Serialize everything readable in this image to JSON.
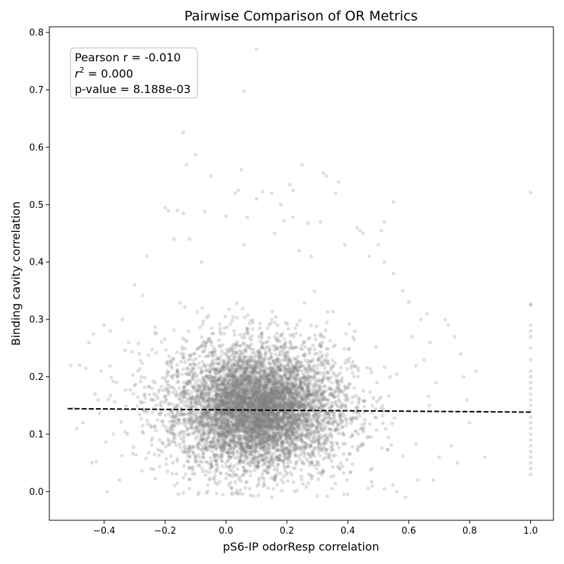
{
  "chart_data": {
    "type": "scatter",
    "title": "Pairwise Comparison of OR Metrics",
    "xlabel": "pS6-IP odorResp correlation",
    "ylabel": "Binding cavity correlation",
    "xlim": [
      -0.58,
      1.075
    ],
    "ylim": [
      -0.05,
      0.81
    ],
    "xticks": [
      -0.4,
      -0.2,
      0.0,
      0.2,
      0.4,
      0.6,
      0.8,
      1.0
    ],
    "xtick_labels": [
      "−0.4",
      "−0.2",
      "0.0",
      "0.2",
      "0.4",
      "0.6",
      "0.8",
      "1.0"
    ],
    "yticks": [
      0.0,
      0.1,
      0.2,
      0.3,
      0.4,
      0.5,
      0.6,
      0.7,
      0.8
    ],
    "ytick_labels": [
      "0.0",
      "0.1",
      "0.2",
      "0.3",
      "0.4",
      "0.5",
      "0.6",
      "0.7",
      "0.8"
    ],
    "grid": false,
    "point_color": "#808080",
    "point_alpha": 0.25,
    "annotation": {
      "pearson": "Pearson r = -0.010",
      "r2_prefix": "r",
      "r2_exp": "2",
      "r2_value": " = 0.000",
      "pvalue": "p-value = 8.188e-03"
    },
    "fit_line": {
      "style": "dashed",
      "color": "#000000",
      "x": [
        -0.52,
        1.0
      ],
      "y": [
        0.1445,
        0.1385
      ]
    },
    "series": [
      {
        "points": [
          [
            0.1,
            0.771
          ],
          [
            0.06,
            0.698
          ],
          [
            -0.14,
            0.626
          ],
          [
            -0.1,
            0.587
          ],
          [
            -0.13,
            0.57
          ],
          [
            0.05,
            0.561
          ],
          [
            0.25,
            0.57
          ],
          [
            0.32,
            0.555
          ],
          [
            0.33,
            0.55
          ],
          [
            0.21,
            0.535
          ],
          [
            0.22,
            0.525
          ],
          [
            0.12,
            0.523
          ],
          [
            0.15,
            0.52
          ],
          [
            0.04,
            0.525
          ],
          [
            0.03,
            0.52
          ],
          [
            -0.05,
            0.55
          ],
          [
            0.37,
            0.54
          ],
          [
            0.36,
            0.52
          ],
          [
            0.55,
            0.505
          ],
          [
            0.1,
            0.51
          ],
          [
            0.18,
            0.5
          ],
          [
            -0.2,
            0.495
          ],
          [
            -0.19,
            0.49
          ],
          [
            -0.16,
            0.49
          ],
          [
            -0.14,
            0.485
          ],
          [
            -0.07,
            0.488
          ],
          [
            0.0,
            0.48
          ],
          [
            0.07,
            0.478
          ],
          [
            0.22,
            0.478
          ],
          [
            0.19,
            0.472
          ],
          [
            0.31,
            0.47
          ],
          [
            0.27,
            0.468
          ],
          [
            0.43,
            0.46
          ],
          [
            0.44,
            0.455
          ],
          [
            0.45,
            0.45
          ],
          [
            0.52,
            0.47
          ],
          [
            0.51,
            0.455
          ],
          [
            1.0,
            0.521
          ],
          [
            -0.3,
            0.36
          ],
          [
            -0.26,
            0.41
          ],
          [
            -0.17,
            0.44
          ],
          [
            -0.12,
            0.44
          ],
          [
            -0.08,
            0.4
          ],
          [
            0.06,
            0.43
          ],
          [
            0.16,
            0.45
          ],
          [
            0.24,
            0.42
          ],
          [
            0.28,
            0.41
          ],
          [
            0.39,
            0.43
          ],
          [
            0.47,
            0.41
          ],
          [
            0.5,
            0.43
          ],
          [
            0.52,
            0.4
          ],
          [
            0.55,
            0.38
          ],
          [
            0.58,
            0.35
          ],
          [
            0.6,
            0.33
          ],
          [
            0.64,
            0.3
          ],
          [
            0.66,
            0.31
          ],
          [
            0.67,
            0.26
          ],
          [
            0.72,
            0.3
          ],
          [
            0.73,
            0.29
          ],
          [
            0.75,
            0.27
          ],
          [
            0.77,
            0.24
          ],
          [
            0.78,
            0.2
          ],
          [
            0.79,
            0.16
          ],
          [
            0.8,
            0.12
          ],
          [
            0.83,
            0.14
          ],
          [
            0.85,
            0.06
          ],
          [
            0.82,
            0.21
          ],
          [
            0.76,
            0.05
          ],
          [
            0.74,
            0.08
          ],
          [
            0.7,
            0.06
          ],
          [
            0.68,
            0.02
          ],
          [
            0.63,
            0.02
          ],
          [
            0.59,
            -0.01
          ],
          [
            0.69,
            0.19
          ],
          [
            0.65,
            0.23
          ],
          [
            0.61,
            0.27
          ],
          [
            -0.51,
            0.22
          ],
          [
            -0.48,
            0.22
          ],
          [
            -0.46,
            0.215
          ],
          [
            -0.45,
            0.26
          ],
          [
            -0.43,
            0.17
          ],
          [
            -0.42,
            0.16
          ],
          [
            -0.41,
            0.21
          ],
          [
            -0.4,
            0.29
          ],
          [
            -0.38,
            0.28
          ],
          [
            -0.36,
            0.19
          ],
          [
            -0.47,
            0.12
          ],
          [
            -0.44,
            0.05
          ],
          [
            -0.39,
            0.0
          ],
          [
            -0.37,
            0.1
          ],
          [
            -0.35,
            0.02
          ],
          [
            -0.5,
            0.145
          ],
          [
            -0.49,
            0.11
          ],
          [
            -0.34,
            0.3
          ],
          [
            -0.32,
            0.26
          ],
          [
            -0.06,
            0.0
          ],
          [
            0.02,
            -0.005
          ],
          [
            0.15,
            -0.01
          ],
          [
            0.3,
            -0.008
          ],
          [
            0.4,
            -0.005
          ],
          [
            -0.12,
            0.005
          ],
          [
            0.48,
            0.01
          ],
          [
            0.52,
            0.005
          ],
          [
            0.56,
            0.0
          ],
          [
            1.0,
            0.327
          ],
          [
            1.0,
            0.325
          ],
          [
            1.0,
            0.29
          ],
          [
            1.0,
            0.28
          ],
          [
            1.0,
            0.27
          ],
          [
            1.0,
            0.25
          ],
          [
            1.0,
            0.23
          ],
          [
            1.0,
            0.21
          ],
          [
            1.0,
            0.2
          ],
          [
            1.0,
            0.19
          ],
          [
            1.0,
            0.18
          ],
          [
            1.0,
            0.17
          ],
          [
            1.0,
            0.16
          ],
          [
            1.0,
            0.15
          ],
          [
            1.0,
            0.14
          ],
          [
            1.0,
            0.13
          ],
          [
            1.0,
            0.12
          ],
          [
            1.0,
            0.11
          ],
          [
            1.0,
            0.1
          ],
          [
            1.0,
            0.09
          ],
          [
            1.0,
            0.08
          ],
          [
            1.0,
            0.07
          ],
          [
            1.0,
            0.06
          ],
          [
            1.0,
            0.05
          ],
          [
            1.0,
            0.04
          ],
          [
            1.0,
            0.03
          ]
        ],
        "cloud": {
          "x_center": 0.1,
          "y_center": 0.145,
          "x_spread": 0.22,
          "y_spread": 0.065,
          "count": 4200
        }
      }
    ]
  }
}
